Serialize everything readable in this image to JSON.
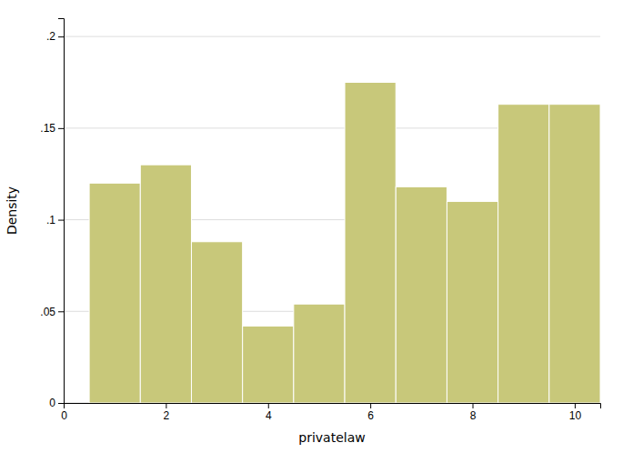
{
  "chart_data": {
    "type": "histogram",
    "bins": [
      0.5,
      1.5,
      2.5,
      3.5,
      4.5,
      5.5,
      6.5,
      7.5,
      8.5,
      9.5,
      10.5
    ],
    "values": [
      0.12,
      0.13,
      0.088,
      0.042,
      0.054,
      0.175,
      0.118,
      0.11,
      0.163,
      0.163
    ],
    "color": "#c8c87a",
    "xlabel": "privatelaw",
    "ylabel": "Density",
    "xlim": [
      0,
      10.5
    ],
    "ylim": [
      0,
      0.21
    ],
    "xticks": [
      0,
      2,
      4,
      6,
      8,
      10
    ],
    "yticks": [
      0,
      {
        "value": 0.05,
        "label": ".05"
      },
      {
        "value": 0.1,
        "label": ".1"
      },
      {
        "value": 0.15,
        "label": ".15"
      },
      {
        "value": 0.2,
        "label": ".2"
      }
    ],
    "grid": true
  }
}
